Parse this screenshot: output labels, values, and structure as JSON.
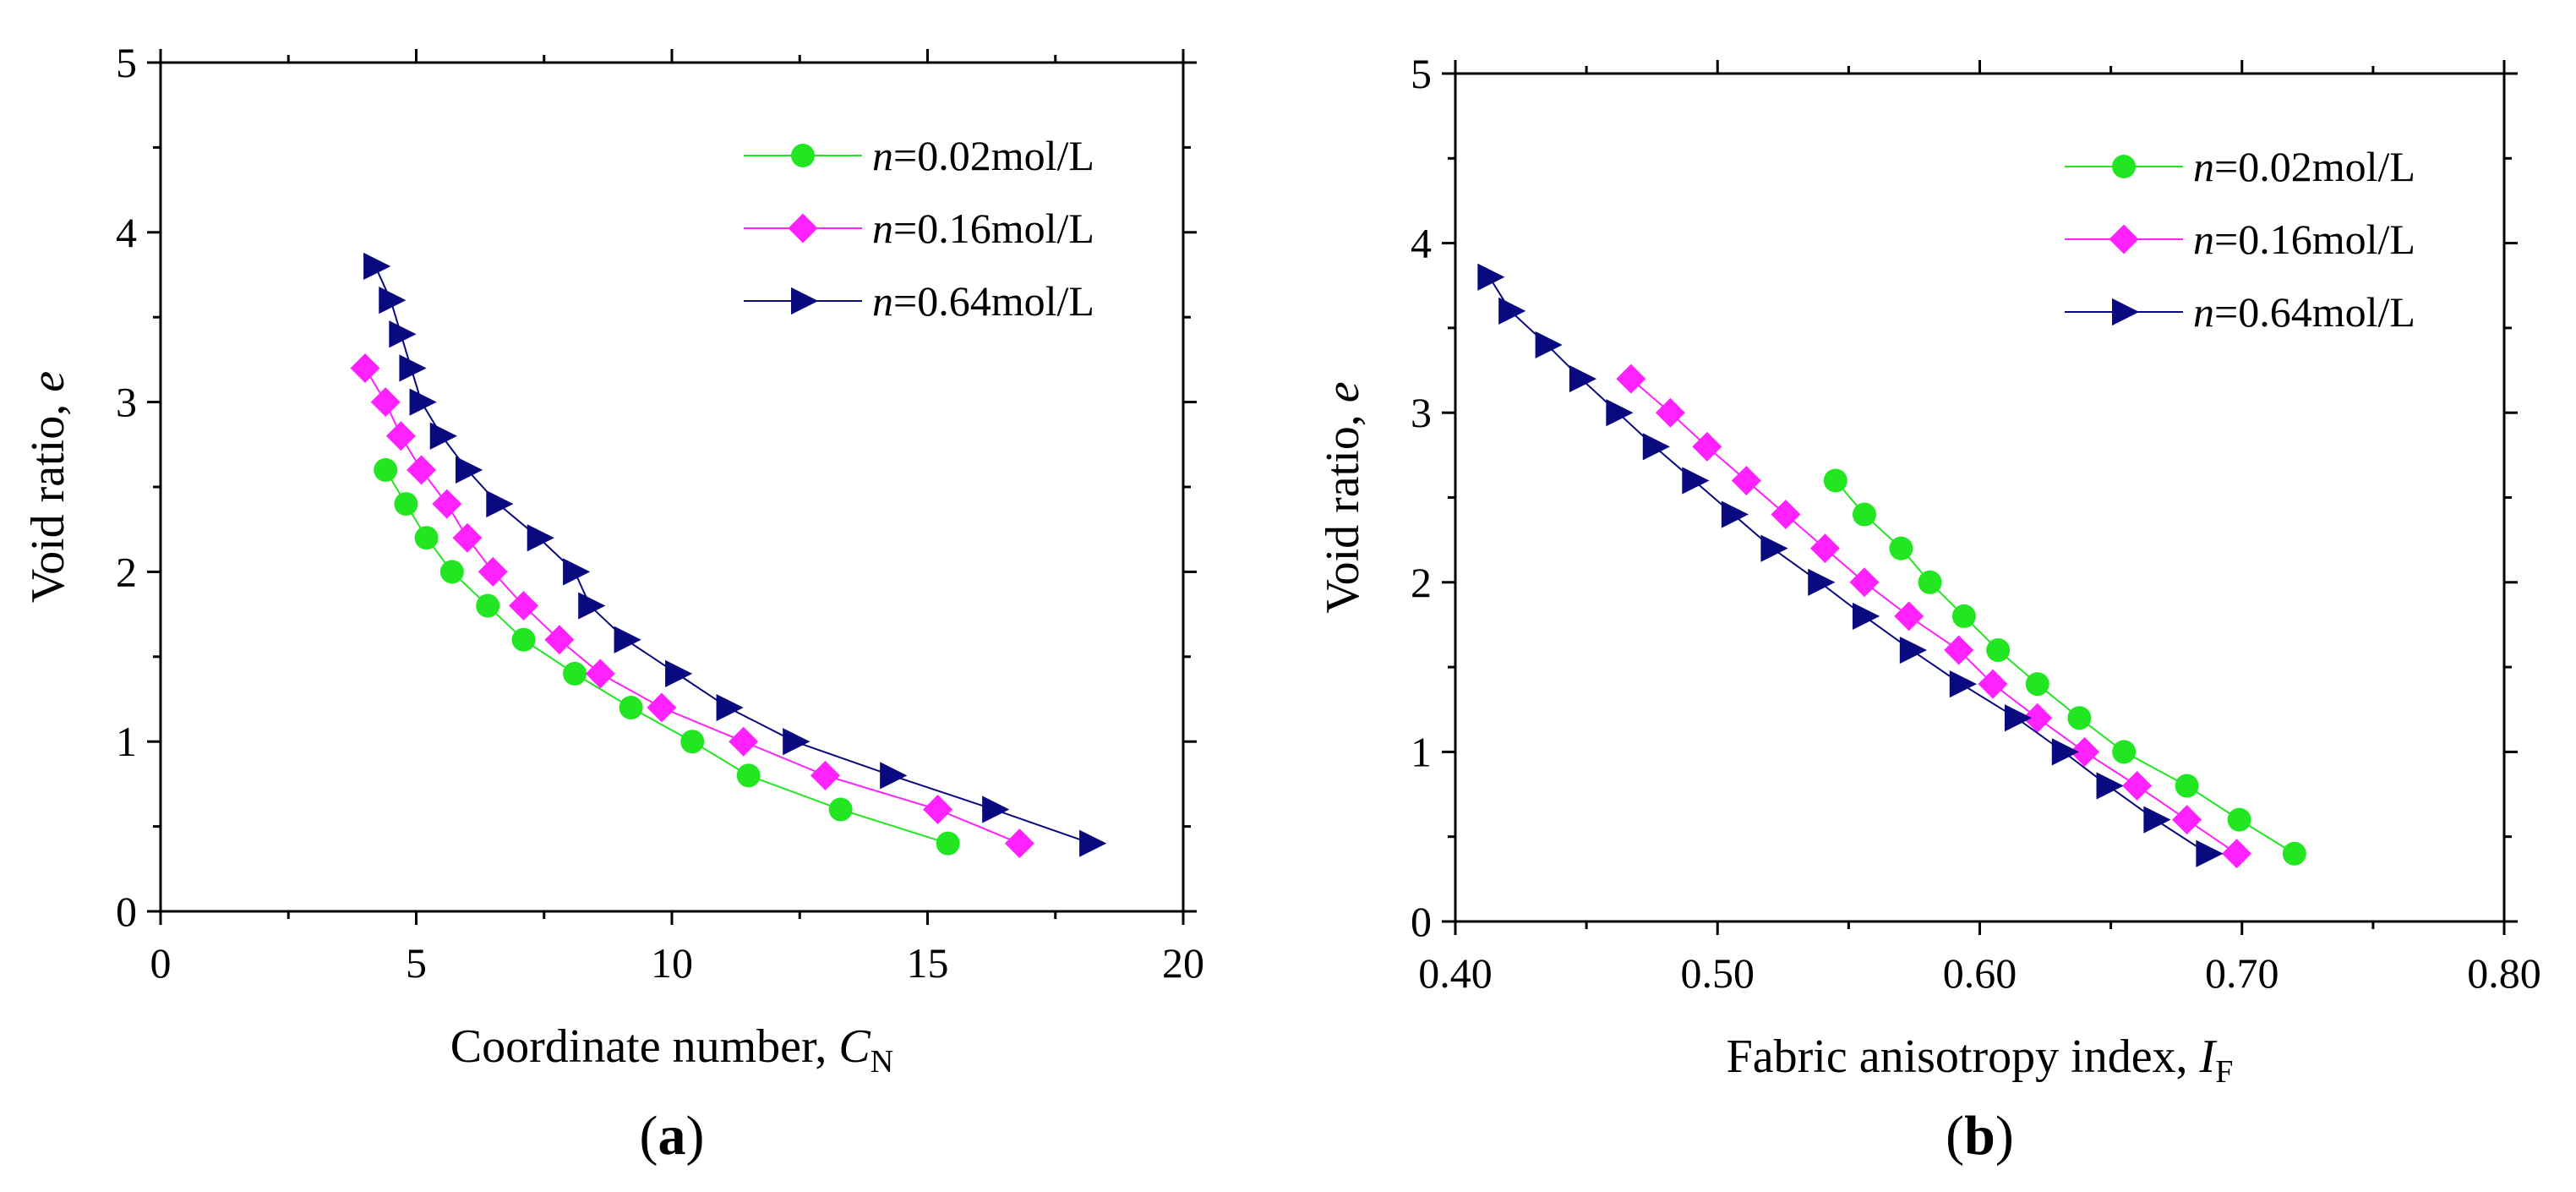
{
  "colors": {
    "series_0": "#22e622",
    "series_1": "#ff22ff",
    "series_2": "#0a0a80",
    "axis": "#000000"
  },
  "chart_data": [
    {
      "type": "line",
      "panel_label": "a",
      "caption_open": "(",
      "caption_close": ")",
      "xlabel": "Coordinate number, ",
      "xlabel_var": "C",
      "xlabel_sub": "N",
      "ylabel": "Void ratio, ",
      "ylabel_var": "e",
      "xlim": [
        0,
        20
      ],
      "ylim": [
        0,
        5
      ],
      "xticks": [
        0,
        5,
        10,
        15,
        20
      ],
      "xtick_labels": [
        "0",
        "5",
        "10",
        "15",
        "20"
      ],
      "yticks": [
        0,
        1,
        2,
        3,
        4,
        5
      ],
      "ytick_labels": [
        "0",
        "1",
        "2",
        "3",
        "4",
        "5"
      ],
      "legend_position": "top-right",
      "series": [
        {
          "name_var": "n",
          "name_rest": "=0.02mol/L",
          "marker": "circle",
          "x": [
            4.4,
            4.8,
            5.2,
            5.7,
            6.4,
            7.1,
            8.1,
            9.2,
            10.4,
            11.5,
            13.3,
            15.4
          ],
          "y": [
            2.6,
            2.4,
            2.2,
            2.0,
            1.8,
            1.6,
            1.4,
            1.2,
            1.0,
            0.8,
            0.6,
            0.4
          ]
        },
        {
          "name_var": "n",
          "name_rest": "=0.16mol/L",
          "marker": "diamond",
          "x": [
            4.0,
            4.4,
            4.7,
            5.1,
            5.6,
            6.0,
            6.5,
            7.1,
            7.8,
            8.6,
            9.8,
            11.4,
            13.0,
            15.2,
            16.8
          ],
          "y": [
            3.2,
            3.0,
            2.8,
            2.6,
            2.4,
            2.2,
            2.0,
            1.8,
            1.6,
            1.4,
            1.2,
            1.0,
            0.8,
            0.6,
            0.4
          ]
        },
        {
          "name_var": "n",
          "name_rest": "=0.64mol/L",
          "marker": "triangle-right",
          "x": [
            4.2,
            4.5,
            4.7,
            4.9,
            5.1,
            5.5,
            6.0,
            6.6,
            7.4,
            8.1,
            8.4,
            9.1,
            10.1,
            11.1,
            12.4,
            14.3,
            16.3,
            18.2
          ],
          "y": [
            3.8,
            3.6,
            3.4,
            3.2,
            3.0,
            2.8,
            2.6,
            2.4,
            2.2,
            2.0,
            1.8,
            1.6,
            1.4,
            1.2,
            1.0,
            0.8,
            0.6,
            0.4
          ]
        }
      ]
    },
    {
      "type": "line",
      "panel_label": "b",
      "caption_open": "(",
      "caption_close": ")",
      "xlabel": "Fabric anisotropy index, ",
      "xlabel_var": "I",
      "xlabel_sub": "F",
      "ylabel": "Void ratio, ",
      "ylabel_var": "e",
      "xlim": [
        0.4,
        0.8
      ],
      "ylim": [
        0,
        5
      ],
      "xticks": [
        0.4,
        0.5,
        0.6,
        0.7,
        0.8
      ],
      "xtick_labels": [
        "0.40",
        "0.50",
        "0.60",
        "0.70",
        "0.80"
      ],
      "yticks": [
        0,
        1,
        2,
        3,
        4,
        5
      ],
      "ytick_labels": [
        "0",
        "1",
        "2",
        "3",
        "4",
        "5"
      ],
      "legend_position": "top-right",
      "series": [
        {
          "name_var": "n",
          "name_rest": "=0.02mol/L",
          "marker": "circle",
          "x": [
            0.545,
            0.556,
            0.57,
            0.581,
            0.594,
            0.607,
            0.622,
            0.638,
            0.655,
            0.679,
            0.699,
            0.72
          ],
          "y": [
            2.6,
            2.4,
            2.2,
            2.0,
            1.8,
            1.6,
            1.4,
            1.2,
            1.0,
            0.8,
            0.6,
            0.4
          ]
        },
        {
          "name_var": "n",
          "name_rest": "=0.16mol/L",
          "marker": "diamond",
          "x": [
            0.467,
            0.482,
            0.496,
            0.511,
            0.526,
            0.541,
            0.556,
            0.573,
            0.592,
            0.605,
            0.622,
            0.64,
            0.66,
            0.679,
            0.698
          ],
          "y": [
            3.2,
            3.0,
            2.8,
            2.6,
            2.4,
            2.2,
            2.0,
            1.8,
            1.6,
            1.4,
            1.2,
            1.0,
            0.8,
            0.6,
            0.4
          ]
        },
        {
          "name_var": "n",
          "name_rest": "=0.64mol/L",
          "marker": "triangle-right",
          "x": [
            0.413,
            0.421,
            0.435,
            0.448,
            0.462,
            0.476,
            0.491,
            0.506,
            0.521,
            0.539,
            0.556,
            0.574,
            0.593,
            0.614,
            0.632,
            0.649,
            0.667,
            0.687
          ],
          "y": [
            3.8,
            3.6,
            3.4,
            3.2,
            3.0,
            2.8,
            2.6,
            2.4,
            2.2,
            2.0,
            1.8,
            1.6,
            1.4,
            1.2,
            1.0,
            0.8,
            0.6,
            0.4
          ]
        }
      ]
    }
  ]
}
